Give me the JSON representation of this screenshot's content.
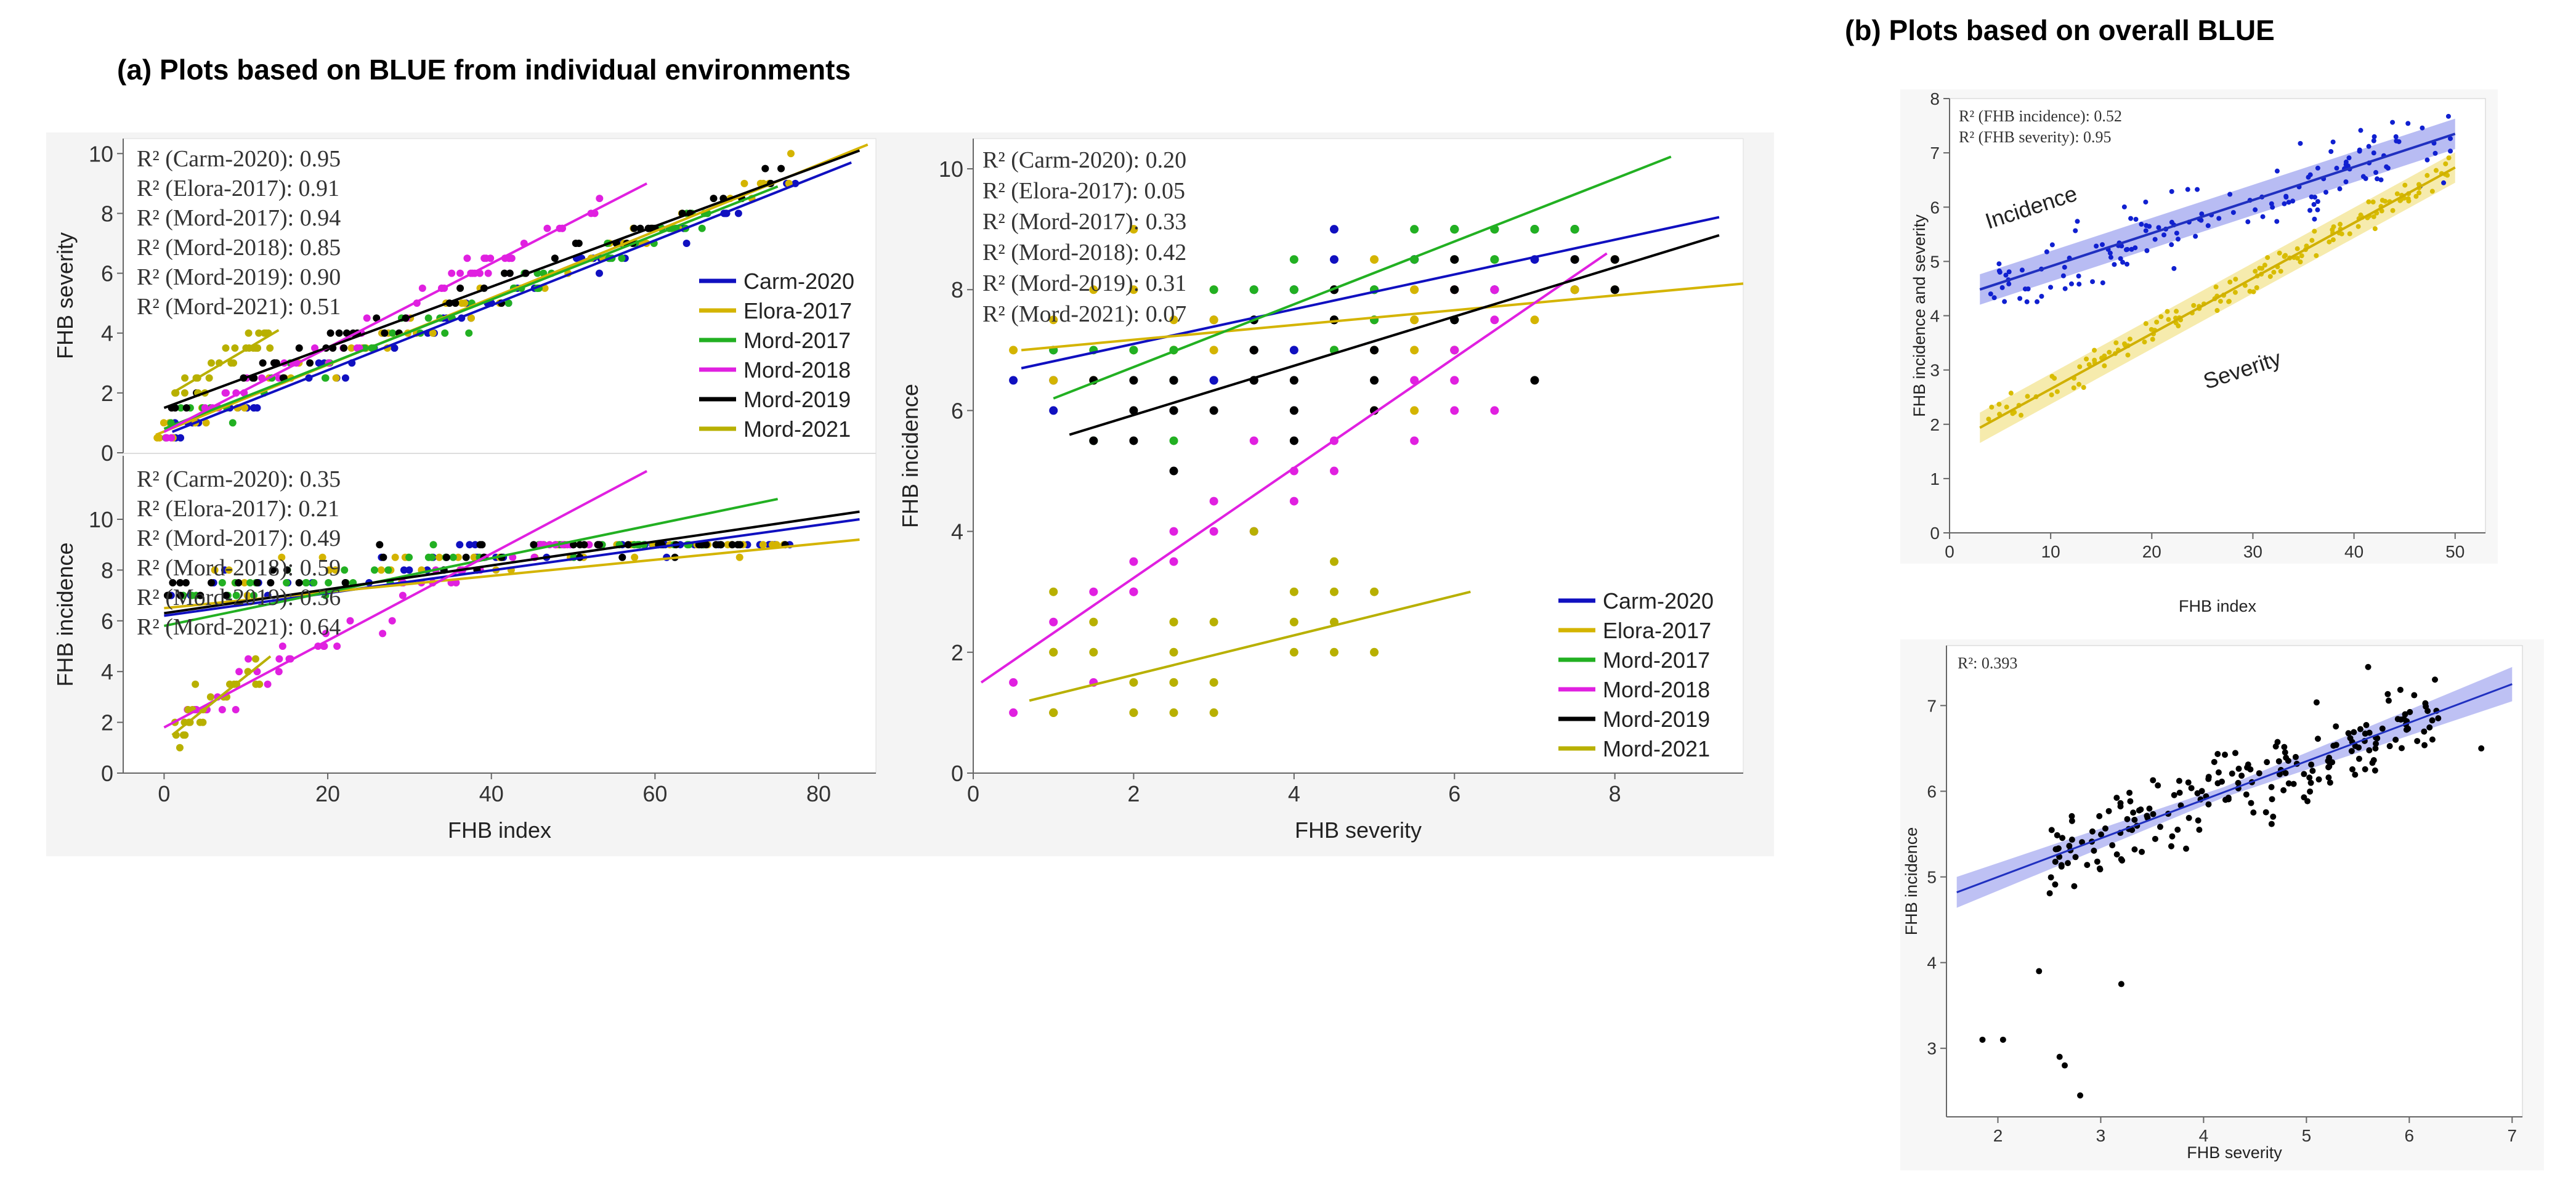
{
  "titles": {
    "a": "(a) Plots based on BLUE from individual environments",
    "b": "(b) Plots based on overall BLUE"
  },
  "chart_data": [
    {
      "id": "a_sev_index",
      "type": "scatter",
      "xlabel": "FHB index",
      "ylabel": "FHB severity",
      "xlim": [
        -5,
        87
      ],
      "ylim": [
        0,
        10.5
      ],
      "xticks": [
        0,
        20,
        40,
        60,
        80
      ],
      "yticks": [
        0,
        2,
        4,
        6,
        8,
        10
      ],
      "r2": [
        {
          "label": "R² (Carm-2020): 0.95"
        },
        {
          "label": "R² (Elora-2017): 0.91"
        },
        {
          "label": "R² (Mord-2017): 0.94"
        },
        {
          "label": "R² (Mord-2018): 0.85"
        },
        {
          "label": "R² (Mord-2019): 0.90"
        },
        {
          "label": "R² (Mord-2021): 0.51"
        }
      ],
      "legend": [
        "Carm-2020",
        "Elora-2017",
        "Mord-2017",
        "Mord-2018",
        "Mord-2019",
        "Mord-2021"
      ],
      "lines": [
        {
          "name": "Carm-2020",
          "color": "#1010c0",
          "x": [
            1,
            84
          ],
          "y": [
            0.7,
            9.7
          ]
        },
        {
          "name": "Elora-2017",
          "color": "#d4b400",
          "x": [
            -1,
            86
          ],
          "y": [
            0.6,
            10.3
          ]
        },
        {
          "name": "Mord-2017",
          "color": "#22b022",
          "x": [
            0,
            75
          ],
          "y": [
            0.8,
            8.9
          ]
        },
        {
          "name": "Mord-2018",
          "color": "#e020e0",
          "x": [
            0,
            59
          ],
          "y": [
            0.7,
            9.0
          ]
        },
        {
          "name": "Mord-2019",
          "color": "#000000",
          "x": [
            0,
            85
          ],
          "y": [
            1.5,
            10.1
          ]
        },
        {
          "name": "Mord-2021",
          "color": "#b8b000",
          "x": [
            1,
            14
          ],
          "y": [
            2.0,
            4.1
          ]
        }
      ]
    },
    {
      "id": "a_inc_index",
      "type": "scatter",
      "xlabel": "FHB index",
      "ylabel": "FHB incidence",
      "xlim": [
        -5,
        87
      ],
      "ylim": [
        0,
        12.5
      ],
      "xticks": [
        0,
        20,
        40,
        60,
        80
      ],
      "yticks": [
        0,
        2,
        4,
        6,
        8,
        10
      ],
      "r2": [
        {
          "label": "R² (Carm-2020): 0.35"
        },
        {
          "label": "R² (Elora-2017): 0.21"
        },
        {
          "label": "R² (Mord-2017): 0.49"
        },
        {
          "label": "R² (Mord-2018): 0.59"
        },
        {
          "label": "R² (Mord-2019): 0.36"
        },
        {
          "label": "R² (Mord-2021): 0.64"
        }
      ],
      "lines": [
        {
          "name": "Carm-2020",
          "color": "#1010c0",
          "x": [
            0,
            85
          ],
          "y": [
            6.2,
            10.0
          ]
        },
        {
          "name": "Elora-2017",
          "color": "#d4b400",
          "x": [
            0,
            85
          ],
          "y": [
            6.5,
            9.2
          ]
        },
        {
          "name": "Mord-2017",
          "color": "#22b022",
          "x": [
            0,
            75
          ],
          "y": [
            5.8,
            10.8
          ]
        },
        {
          "name": "Mord-2018",
          "color": "#e020e0",
          "x": [
            0,
            59
          ],
          "y": [
            1.8,
            11.9
          ]
        },
        {
          "name": "Mord-2019",
          "color": "#000000",
          "x": [
            0,
            85
          ],
          "y": [
            6.3,
            10.3
          ]
        },
        {
          "name": "Mord-2021",
          "color": "#b8b000",
          "x": [
            1,
            13
          ],
          "y": [
            1.5,
            4.6
          ]
        }
      ]
    },
    {
      "id": "a_inc_sev",
      "type": "scatter",
      "xlabel": "FHB severity",
      "ylabel": "FHB incidence",
      "xlim": [
        0,
        9.6
      ],
      "ylim": [
        0,
        10.5
      ],
      "xticks": [
        0,
        2,
        4,
        6,
        8
      ],
      "yticks": [
        0,
        2,
        4,
        6,
        8,
        10
      ],
      "r2": [
        {
          "label": "R² (Carm-2020): 0.20"
        },
        {
          "label": "R² (Elora-2017): 0.05"
        },
        {
          "label": "R² (Mord-2017): 0.33"
        },
        {
          "label": "R² (Mord-2018): 0.42"
        },
        {
          "label": "R² (Mord-2019): 0.31"
        },
        {
          "label": "R² (Mord-2021): 0.07"
        }
      ],
      "legend": [
        "Carm-2020",
        "Elora-2017",
        "Mord-2017",
        "Mord-2018",
        "Mord-2019",
        "Mord-2021"
      ],
      "lines": [
        {
          "name": "Carm-2020",
          "color": "#1010c0",
          "x": [
            0.6,
            9.3
          ],
          "y": [
            6.7,
            9.2
          ]
        },
        {
          "name": "Elora-2017",
          "color": "#d4b400",
          "x": [
            0.6,
            9.6
          ],
          "y": [
            7.0,
            8.1
          ]
        },
        {
          "name": "Mord-2017",
          "color": "#22b022",
          "x": [
            1,
            8.7
          ],
          "y": [
            6.2,
            10.2
          ]
        },
        {
          "name": "Mord-2018",
          "color": "#e020e0",
          "x": [
            0.1,
            7.9
          ],
          "y": [
            1.5,
            8.6
          ]
        },
        {
          "name": "Mord-2019",
          "color": "#000000",
          "x": [
            1.2,
            9.3
          ],
          "y": [
            5.6,
            8.9
          ]
        },
        {
          "name": "Mord-2021",
          "color": "#b8b000",
          "x": [
            0.7,
            6.2
          ],
          "y": [
            1.2,
            3.0
          ]
        }
      ]
    },
    {
      "id": "b_inc_sev_index",
      "type": "scatter",
      "xlabel": "FHB index",
      "ylabel": "FHB incidence and severity",
      "xlim": [
        0,
        53
      ],
      "ylim": [
        0,
        8
      ],
      "xticks": [
        0,
        10,
        20,
        30,
        40,
        50
      ],
      "yticks": [
        0,
        1,
        2,
        3,
        4,
        5,
        6,
        7,
        8
      ],
      "r2": [
        {
          "label": "R² (FHB incidence): 0.52"
        },
        {
          "label": "R² (FHB severity): 0.95"
        }
      ],
      "annotations": [
        "Incidence",
        "Severity"
      ],
      "series": [
        {
          "name": "Incidence",
          "color": "#1020d0",
          "x_range": [
            3,
            50
          ],
          "fit": [
            4.3,
            0.061
          ]
        },
        {
          "name": "Severity",
          "color": "#d8bc00",
          "x_range": [
            3,
            50
          ],
          "fit": [
            1.63,
            0.102
          ]
        }
      ]
    },
    {
      "id": "b_inc_severity",
      "type": "scatter",
      "xlabel": "FHB severity",
      "ylabel": "FHB incidence",
      "xlim": [
        1.5,
        7.1
      ],
      "ylim": [
        2.2,
        7.7
      ],
      "xticks": [
        2,
        3,
        4,
        5,
        6,
        7
      ],
      "yticks": [
        3,
        4,
        5,
        6,
        7
      ],
      "r2": [
        {
          "label": "R²: 0.393"
        }
      ],
      "fit": [
        4.1,
        0.45
      ],
      "line_x": [
        1.6,
        7.0
      ]
    }
  ]
}
